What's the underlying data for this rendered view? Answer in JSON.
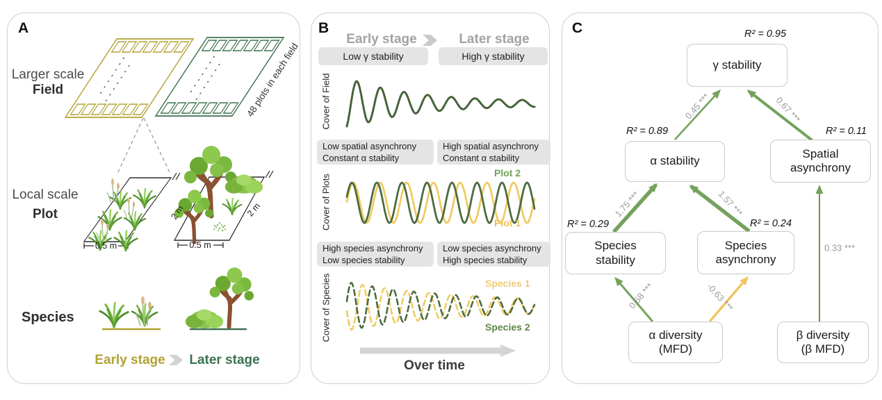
{
  "palette": {
    "olive": "#b1a233",
    "yellow_wave": "#f0cb64",
    "green_dark_wave": "#46633a",
    "green_field": "#3e7051",
    "green_text": "#3c7152",
    "arrow_green": "#74a25c",
    "arrow_yellow": "#efc65f",
    "coef_gray": "#9b9b9b",
    "pill_bg": "#e4e4e4",
    "box_border": "#c9c9c9",
    "stage_gray": "#a2a2a2"
  },
  "a": {
    "label": "A",
    "larger_scale": "Larger scale",
    "field": "Field",
    "local_scale": "Local scale",
    "plot": "Plot",
    "species": "Species",
    "plots_note": "48 plots in each field",
    "dim_2m": "2 m",
    "dim_05m": "0.5 m",
    "early": "Early stage",
    "later": "Later stage"
  },
  "b": {
    "label": "B",
    "early": "Early stage",
    "later": "Later stage",
    "pill_gamma_low": "Low γ stability",
    "pill_gamma_high": "High γ stability",
    "axis_field": "Cover of Field",
    "axis_plots": "Cover of Plots",
    "axis_species": "Cover of Species",
    "pill_spatial_low": "Low spatial asynchrony\nConstant α stability",
    "pill_spatial_high": "High spatial asynchrony\nConstant α stability",
    "pill_species_left": "High species asynchrony\nLow species stability",
    "pill_species_right": "Low species asynchrony\nHigh species stability",
    "plot2": "Plot 2",
    "plot1": "Plot 1",
    "species1": "Species 1",
    "species2": "Species 2",
    "over_time": "Over time"
  },
  "c": {
    "label": "C",
    "boxes": {
      "gamma": {
        "text": "γ stability",
        "r2": "R² = 0.95"
      },
      "alpha": {
        "text": "α stability",
        "r2": "R² = 0.89"
      },
      "spatial": {
        "text": "Spatial\nasynchrony",
        "r2": "R² = 0.11"
      },
      "sp_stab": {
        "text": "Species\nstability",
        "r2": "R² = 0.29"
      },
      "sp_asyn": {
        "text": "Species\nasynchrony",
        "r2": "R² = 0.24"
      },
      "alpha_div": {
        "text": "α diversity\n(MFD)"
      },
      "beta_div": {
        "text": "β diversity\n(β MFD)"
      }
    },
    "coefs": {
      "alpha_gamma": "0.45 ***",
      "spatial_gamma": "0.67 ***",
      "stab_alpha": "1.75 ***",
      "asyn_alpha": "1.57 ***",
      "beta_spatial": "0.33 ***",
      "div_stab": "0.58 ***",
      "div_asyn": "-0.63 ***"
    }
  }
}
